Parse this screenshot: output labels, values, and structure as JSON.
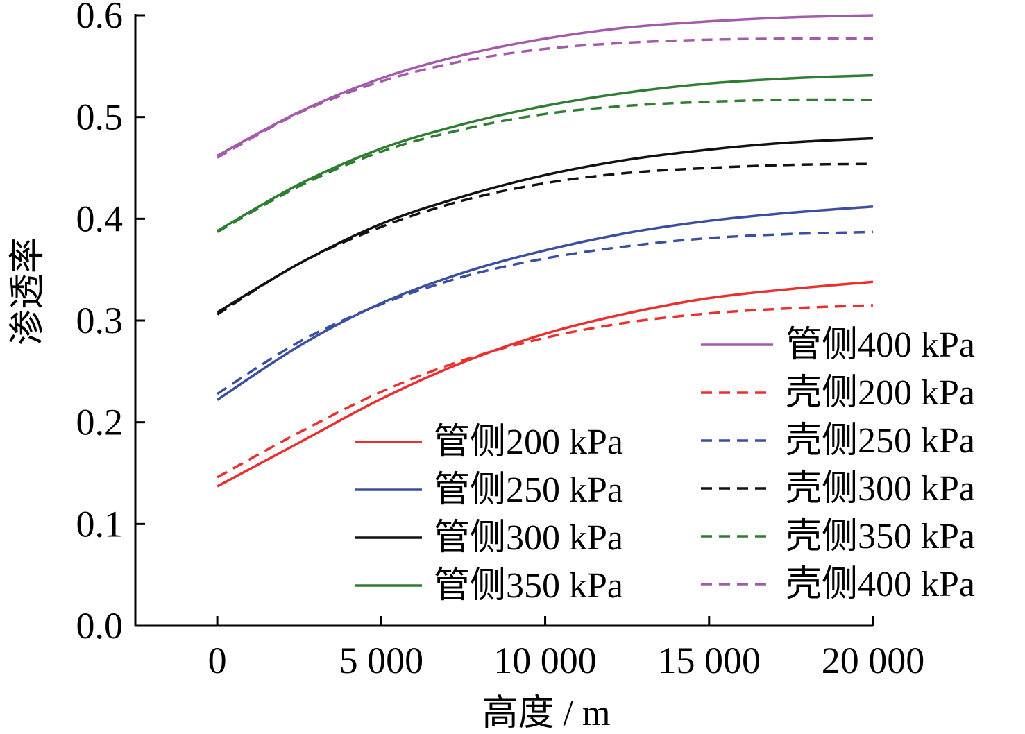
{
  "chart_data": {
    "type": "line",
    "title": "",
    "xlabel": "高度 / m",
    "ylabel": "渗透率",
    "xlim": [
      -2500,
      20000
    ],
    "ylim": [
      0,
      0.6
    ],
    "xticks": [
      0,
      5000,
      10000,
      15000,
      20000
    ],
    "xtick_labels": [
      "0",
      "5 000",
      "10 000",
      "15 000",
      "20 000"
    ],
    "yticks": [
      0,
      0.1,
      0.2,
      0.3,
      0.4,
      0.5,
      0.6
    ],
    "ytick_labels": [
      "0.0",
      "0.1",
      "0.2",
      "0.3",
      "0.4",
      "0.5",
      "0.6"
    ],
    "grid": false,
    "legend_placement": "lower-right, two columns",
    "x": [
      0,
      2500,
      5000,
      7500,
      10000,
      12500,
      15000,
      17500,
      20000
    ],
    "series": [
      {
        "name": "管侧200 kPa",
        "color": "#e8312f",
        "dash": "solid",
        "values": [
          0.137,
          0.18,
          0.223,
          0.259,
          0.287,
          0.307,
          0.322,
          0.331,
          0.338
        ]
      },
      {
        "name": "管侧250 kPa",
        "color": "#3a4fa0",
        "dash": "solid",
        "values": [
          0.222,
          0.275,
          0.317,
          0.347,
          0.369,
          0.386,
          0.398,
          0.406,
          0.412
        ]
      },
      {
        "name": "管侧300 kPa",
        "color": "#111111",
        "dash": "solid",
        "values": [
          0.308,
          0.356,
          0.395,
          0.422,
          0.443,
          0.458,
          0.468,
          0.475,
          0.479
        ]
      },
      {
        "name": "管侧350 kPa",
        "color": "#2e7d32",
        "dash": "solid",
        "values": [
          0.388,
          0.434,
          0.469,
          0.493,
          0.511,
          0.524,
          0.533,
          0.538,
          0.541
        ]
      },
      {
        "name": "管侧400 kPa",
        "color": "#a45aab",
        "dash": "solid",
        "values": [
          0.462,
          0.505,
          0.538,
          0.561,
          0.577,
          0.588,
          0.594,
          0.598,
          0.6
        ]
      },
      {
        "name": "壳侧200 kPa",
        "color": "#e8312f",
        "dash": "dashed",
        "values": [
          0.146,
          0.19,
          0.23,
          0.261,
          0.283,
          0.298,
          0.307,
          0.312,
          0.315
        ]
      },
      {
        "name": "壳侧250 kPa",
        "color": "#3a4fa0",
        "dash": "dashed",
        "values": [
          0.228,
          0.279,
          0.316,
          0.343,
          0.361,
          0.373,
          0.381,
          0.385,
          0.387
        ]
      },
      {
        "name": "壳侧300 kPa",
        "color": "#111111",
        "dash": "dashed",
        "values": [
          0.306,
          0.356,
          0.392,
          0.418,
          0.435,
          0.445,
          0.45,
          0.453,
          0.454
        ]
      },
      {
        "name": "壳侧350 kPa",
        "color": "#2e7d32",
        "dash": "dashed",
        "values": [
          0.387,
          0.432,
          0.466,
          0.488,
          0.503,
          0.511,
          0.515,
          0.517,
          0.517
        ]
      },
      {
        "name": "壳侧400 kPa",
        "color": "#a45aab",
        "dash": "dashed",
        "values": [
          0.46,
          0.504,
          0.535,
          0.555,
          0.567,
          0.573,
          0.576,
          0.577,
          0.577
        ]
      }
    ]
  }
}
